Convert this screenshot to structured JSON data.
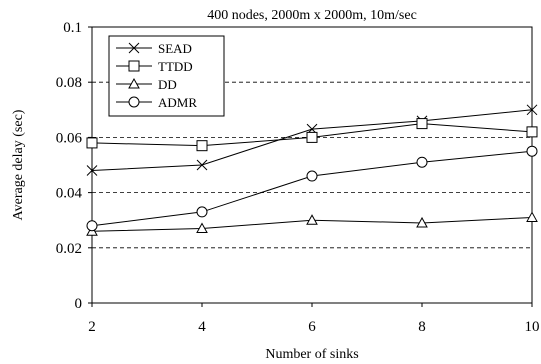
{
  "chart_data": {
    "type": "line",
    "title": "400 nodes, 2000m x 2000m, 10m/sec",
    "xlabel": "Number of sinks",
    "ylabel": "Average delay (sec)",
    "x": [
      2,
      4,
      6,
      8,
      10
    ],
    "xlim": [
      2,
      10
    ],
    "ylim": [
      0,
      0.1
    ],
    "xticks": [
      "2",
      "4",
      "6",
      "8",
      "10"
    ],
    "yticks": [
      "0",
      "0.02",
      "0.04",
      "0.06",
      "0.08",
      "0.1"
    ],
    "grid": "horizontal dashed",
    "legend_position": "top-left",
    "series": [
      {
        "name": "SEAD",
        "marker": "x",
        "values": [
          0.048,
          0.05,
          0.063,
          0.066,
          0.07
        ]
      },
      {
        "name": "TTDD",
        "marker": "square",
        "values": [
          0.058,
          0.057,
          0.06,
          0.065,
          0.062
        ]
      },
      {
        "name": "DD",
        "marker": "triangle",
        "values": [
          0.026,
          0.027,
          0.03,
          0.029,
          0.031
        ]
      },
      {
        "name": "ADMR",
        "marker": "circle",
        "values": [
          0.028,
          0.033,
          0.046,
          0.051,
          0.055
        ]
      }
    ]
  }
}
